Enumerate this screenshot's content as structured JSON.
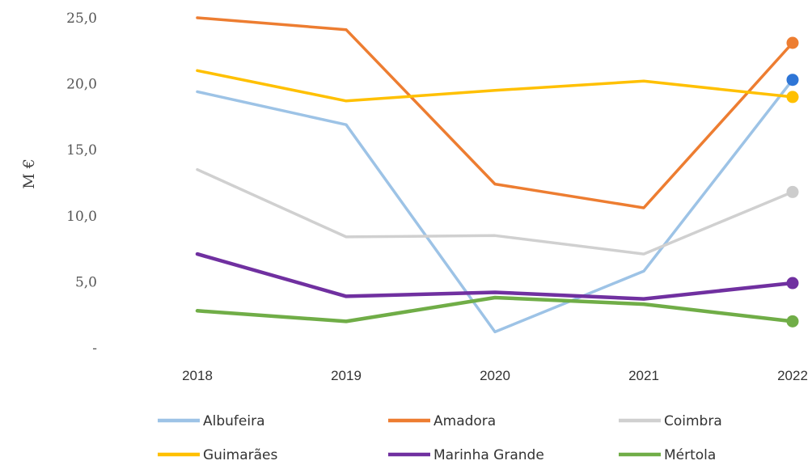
{
  "chart_data": {
    "type": "line",
    "ylabel": "M €",
    "x": [
      "2018",
      "2019",
      "2020",
      "2021",
      "2022"
    ],
    "ylim": [
      0,
      25
    ],
    "yticks": [
      "-",
      "5,0",
      "10,0",
      "15,0",
      "20,0",
      "25,0"
    ],
    "grid": false,
    "legend_position": "bottom",
    "series": [
      {
        "name": "Albufeira",
        "color": "#9dc3e6",
        "values": [
          19.4,
          16.9,
          1.2,
          5.8,
          20.3
        ],
        "end_marker_color": "#2e75d6"
      },
      {
        "name": "Amadora",
        "color": "#ed7d31",
        "values": [
          25.0,
          24.1,
          12.4,
          10.6,
          23.1
        ],
        "end_marker_color": "#ed7d31"
      },
      {
        "name": "Coimbra",
        "color": "#d0d0d0",
        "values": [
          13.5,
          8.4,
          8.5,
          7.1,
          11.8
        ],
        "end_marker_color": "#cccccc"
      },
      {
        "name": "Guimarães",
        "color": "#ffc000",
        "values": [
          21.0,
          18.7,
          19.5,
          20.2,
          19.0
        ],
        "end_marker_color": "#ffc000"
      },
      {
        "name": "Marinha Grande",
        "color": "#7030a0",
        "values": [
          7.1,
          3.9,
          4.2,
          3.7,
          4.9
        ],
        "end_marker_color": "#7030a0"
      },
      {
        "name": "Mértola",
        "color": "#70ad47",
        "values": [
          2.8,
          2.0,
          3.8,
          3.3,
          2.0
        ],
        "end_marker_color": "#70ad47"
      }
    ]
  }
}
